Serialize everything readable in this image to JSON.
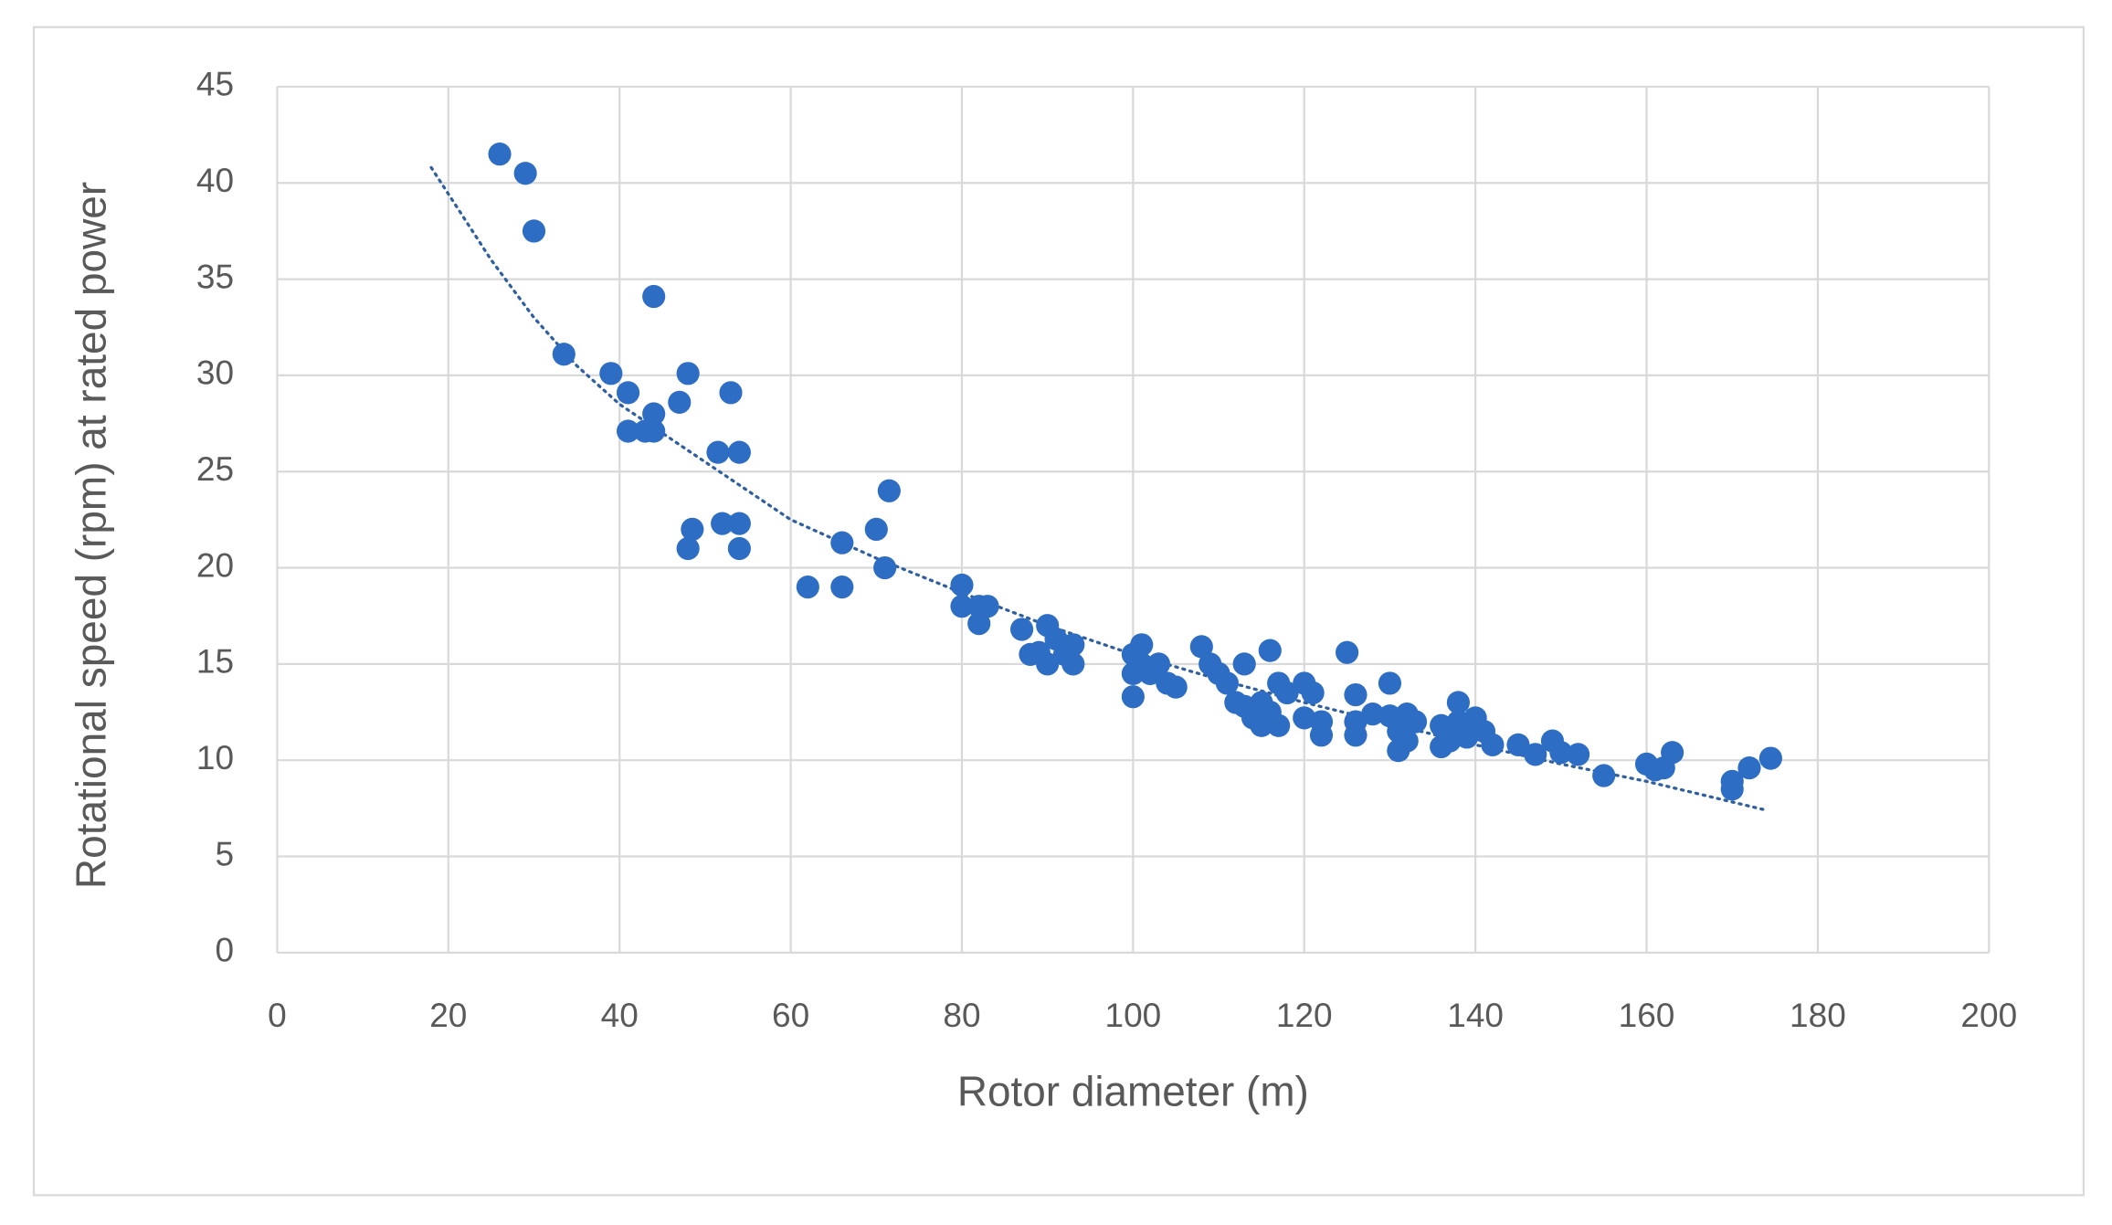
{
  "chart_data": {
    "type": "scatter",
    "xlabel": "Rotor diameter (m)",
    "ylabel": "Rotational speed (rpm) at rated power",
    "xlim": [
      0,
      200
    ],
    "xticks": [
      0,
      20,
      40,
      60,
      80,
      100,
      120,
      140,
      160,
      180,
      200
    ],
    "ylim": [
      0,
      45
    ],
    "yticks": [
      0,
      5,
      10,
      15,
      20,
      25,
      30,
      35,
      40,
      45
    ],
    "grid": true,
    "color": "#2e6dc4",
    "x": [
      26,
      29,
      30,
      33.5,
      39,
      41,
      41,
      43,
      44,
      44,
      44,
      47,
      48,
      48,
      48.5,
      51.5,
      52,
      53,
      54,
      54,
      54,
      62,
      66,
      66,
      70,
      71,
      71.5,
      80,
      80,
      82,
      82,
      83,
      87,
      88,
      89,
      90,
      90,
      91,
      92,
      93,
      93,
      100,
      100,
      100,
      101,
      101,
      102,
      103,
      104,
      105,
      108,
      109,
      110,
      111,
      112,
      113,
      113,
      114,
      115,
      115,
      116,
      116,
      117,
      117,
      118,
      120,
      120,
      121,
      122,
      122,
      125,
      126,
      126,
      126,
      128,
      130,
      130,
      131,
      131,
      132,
      132,
      133,
      136,
      136,
      137,
      138,
      138,
      139,
      140,
      141,
      142,
      145,
      147,
      149,
      150,
      152,
      155,
      160,
      161,
      162,
      163,
      170,
      170,
      172,
      174.5
    ],
    "values": [
      41.5,
      40.5,
      37.5,
      31.1,
      30.1,
      29.1,
      27.1,
      27.1,
      27.1,
      28,
      34.1,
      28.6,
      30.1,
      21,
      22,
      26,
      22.3,
      29.1,
      26,
      22.3,
      21,
      19,
      21.3,
      19,
      22,
      20,
      24,
      19.1,
      18,
      17.1,
      18,
      18,
      16.8,
      15.5,
      15.6,
      17,
      15,
      16.3,
      15.5,
      15,
      16,
      15.5,
      14.5,
      13.3,
      16,
      15,
      14.5,
      15,
      14,
      13.8,
      15.9,
      15,
      14.5,
      14,
      13,
      15,
      12.8,
      12.2,
      13,
      11.8,
      15.7,
      12.5,
      14,
      11.8,
      13.5,
      14,
      12.2,
      13.5,
      12,
      11.3,
      15.6,
      13.4,
      12,
      11.3,
      12.4,
      14,
      12.3,
      11.5,
      10.5,
      12.4,
      11,
      12,
      10.7,
      11.8,
      11,
      13,
      12,
      11.2,
      12.2,
      11.5,
      10.8,
      10.8,
      10.3,
      11,
      10.4,
      10.3,
      9.2,
      9.8,
      9.5,
      9.6,
      10.4,
      8.5,
      8.9,
      9.6,
      10.1
    ],
    "trendline": {
      "color": "#2f5f9e",
      "x": [
        18,
        25,
        30,
        35,
        40,
        50,
        60,
        70,
        80,
        90,
        100,
        110,
        120,
        130,
        140,
        150,
        160,
        174
      ],
      "values": [
        40.8,
        36,
        33,
        30.5,
        28.5,
        25.5,
        22.5,
        20.5,
        18.7,
        17,
        15.5,
        14.2,
        13,
        11.9,
        10.8,
        9.8,
        8.9,
        7.4
      ]
    }
  }
}
